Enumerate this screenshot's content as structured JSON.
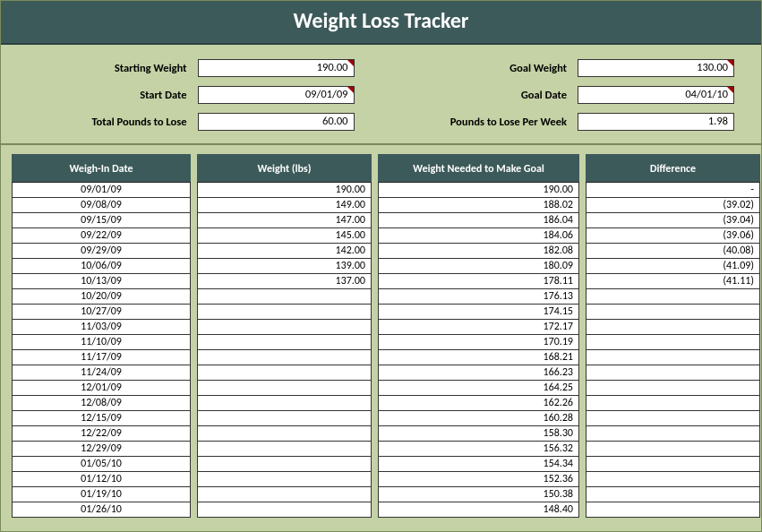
{
  "title": "Weight Loss Tracker",
  "colors": {
    "header_bg": "#3d5a5a",
    "header_text": "#ffffff",
    "sheet_bg": "#c5d2a6",
    "cell_bg": "#ffffff",
    "border": "#333333",
    "comment_marker": "#a00000"
  },
  "summary": {
    "starting_weight": {
      "label": "Starting Weight",
      "value": "190.00",
      "marker": true
    },
    "goal_weight": {
      "label": "Goal Weight",
      "value": "130.00",
      "marker": true
    },
    "start_date": {
      "label": "Start Date",
      "value": "09/01/09",
      "marker": true
    },
    "goal_date": {
      "label": "Goal Date",
      "value": "04/01/10",
      "marker": true
    },
    "total_lose": {
      "label": "Total Pounds to Lose",
      "value": "60.00",
      "marker": false
    },
    "per_week": {
      "label": "Pounds to Lose Per Week",
      "value": "1.98",
      "marker": false
    }
  },
  "columns": {
    "weigh_in_date": {
      "header": "Weigh-In Date",
      "align": "center"
    },
    "weight": {
      "header": "Weight (lbs)",
      "align": "right"
    },
    "needed": {
      "header": "Weight Needed to Make Goal",
      "align": "right"
    },
    "difference": {
      "header": "Difference",
      "align": "right"
    }
  },
  "rows": [
    {
      "date": "09/01/09",
      "weight": "190.00",
      "needed": "190.00",
      "diff": "-"
    },
    {
      "date": "09/08/09",
      "weight": "149.00",
      "needed": "188.02",
      "diff": "(39.02)"
    },
    {
      "date": "09/15/09",
      "weight": "147.00",
      "needed": "186.04",
      "diff": "(39.04)"
    },
    {
      "date": "09/22/09",
      "weight": "145.00",
      "needed": "184.06",
      "diff": "(39.06)"
    },
    {
      "date": "09/29/09",
      "weight": "142.00",
      "needed": "182.08",
      "diff": "(40.08)"
    },
    {
      "date": "10/06/09",
      "weight": "139.00",
      "needed": "180.09",
      "diff": "(41.09)"
    },
    {
      "date": "10/13/09",
      "weight": "137.00",
      "needed": "178.11",
      "diff": "(41.11)"
    },
    {
      "date": "10/20/09",
      "weight": "",
      "needed": "176.13",
      "diff": ""
    },
    {
      "date": "10/27/09",
      "weight": "",
      "needed": "174.15",
      "diff": ""
    },
    {
      "date": "11/03/09",
      "weight": "",
      "needed": "172.17",
      "diff": ""
    },
    {
      "date": "11/10/09",
      "weight": "",
      "needed": "170.19",
      "diff": ""
    },
    {
      "date": "11/17/09",
      "weight": "",
      "needed": "168.21",
      "diff": ""
    },
    {
      "date": "11/24/09",
      "weight": "",
      "needed": "166.23",
      "diff": ""
    },
    {
      "date": "12/01/09",
      "weight": "",
      "needed": "164.25",
      "diff": ""
    },
    {
      "date": "12/08/09",
      "weight": "",
      "needed": "162.26",
      "diff": ""
    },
    {
      "date": "12/15/09",
      "weight": "",
      "needed": "160.28",
      "diff": ""
    },
    {
      "date": "12/22/09",
      "weight": "",
      "needed": "158.30",
      "diff": ""
    },
    {
      "date": "12/29/09",
      "weight": "",
      "needed": "156.32",
      "diff": ""
    },
    {
      "date": "01/05/10",
      "weight": "",
      "needed": "154.34",
      "diff": ""
    },
    {
      "date": "01/12/10",
      "weight": "",
      "needed": "152.36",
      "diff": ""
    },
    {
      "date": "01/19/10",
      "weight": "",
      "needed": "150.38",
      "diff": ""
    },
    {
      "date": "01/26/10",
      "weight": "",
      "needed": "148.40",
      "diff": ""
    }
  ]
}
